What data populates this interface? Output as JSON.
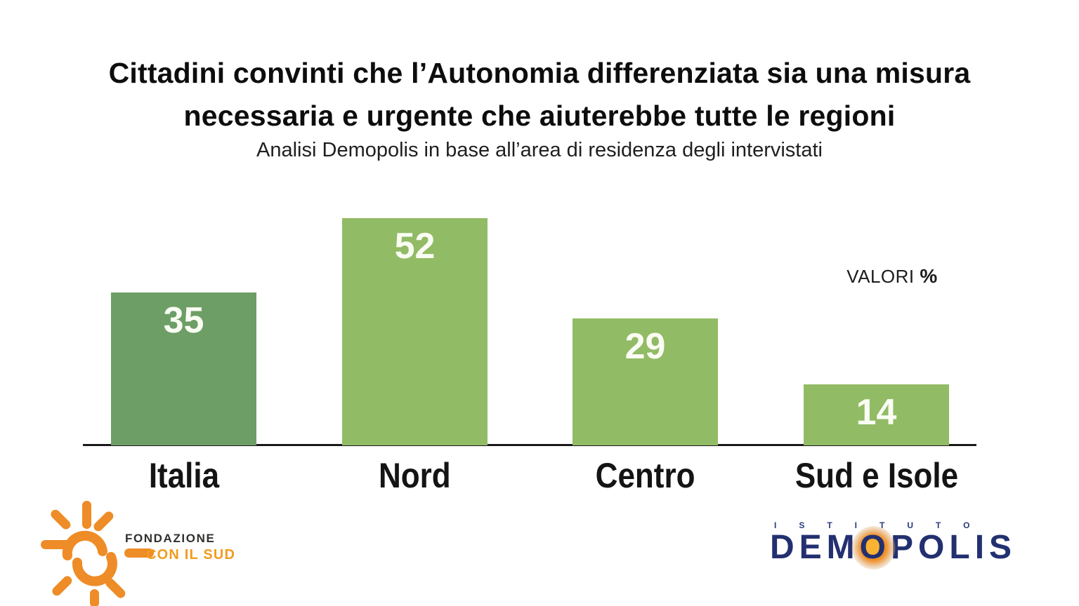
{
  "title": {
    "line1": "Cittadini convinti che l’Autonomia differenziata sia una misura",
    "line2": "necessaria e urgente che aiuterebbe tutte le regioni"
  },
  "subtitle": "Analisi Demopolis in base all’area di residenza degli intervistati",
  "valori": {
    "label": "VALORI",
    "pct": "%"
  },
  "chart_data": {
    "type": "bar",
    "title": "Cittadini convinti che l’Autonomia differenziata sia una misura necessaria e urgente che aiuterebbe tutte le regioni",
    "subtitle": "Analisi Demopolis in base all’area di residenza degli intervistati",
    "categories": [
      "Italia",
      "Nord",
      "Centro",
      "Sud e Isole"
    ],
    "values": [
      35,
      52,
      29,
      14
    ],
    "unit": "percent",
    "value_note": "VALORI %",
    "ylim": [
      0,
      60
    ],
    "grid": false,
    "legend": "none",
    "bar_colors": [
      "#6d9e66",
      "#92bb65",
      "#92bb65",
      "#92bb65"
    ]
  },
  "footer": {
    "fondazione": {
      "line1": "FONDAZIONE",
      "line2": "CON IL SUD"
    },
    "demopolis": {
      "istituto": "ISTITUTO",
      "name_prefix": "DEM",
      "name_o": "O",
      "name_suffix": "POLIS"
    }
  },
  "colors": {
    "bar_italia": "#6d9e66",
    "bar_other": "#92bb65",
    "value_text": "#fafcf4",
    "axis": "#1a1a1a",
    "title_text": "#0d0d0d",
    "navy": "#233070",
    "orange_sun": "#ee8c27",
    "orange_text": "#f29b1d"
  }
}
